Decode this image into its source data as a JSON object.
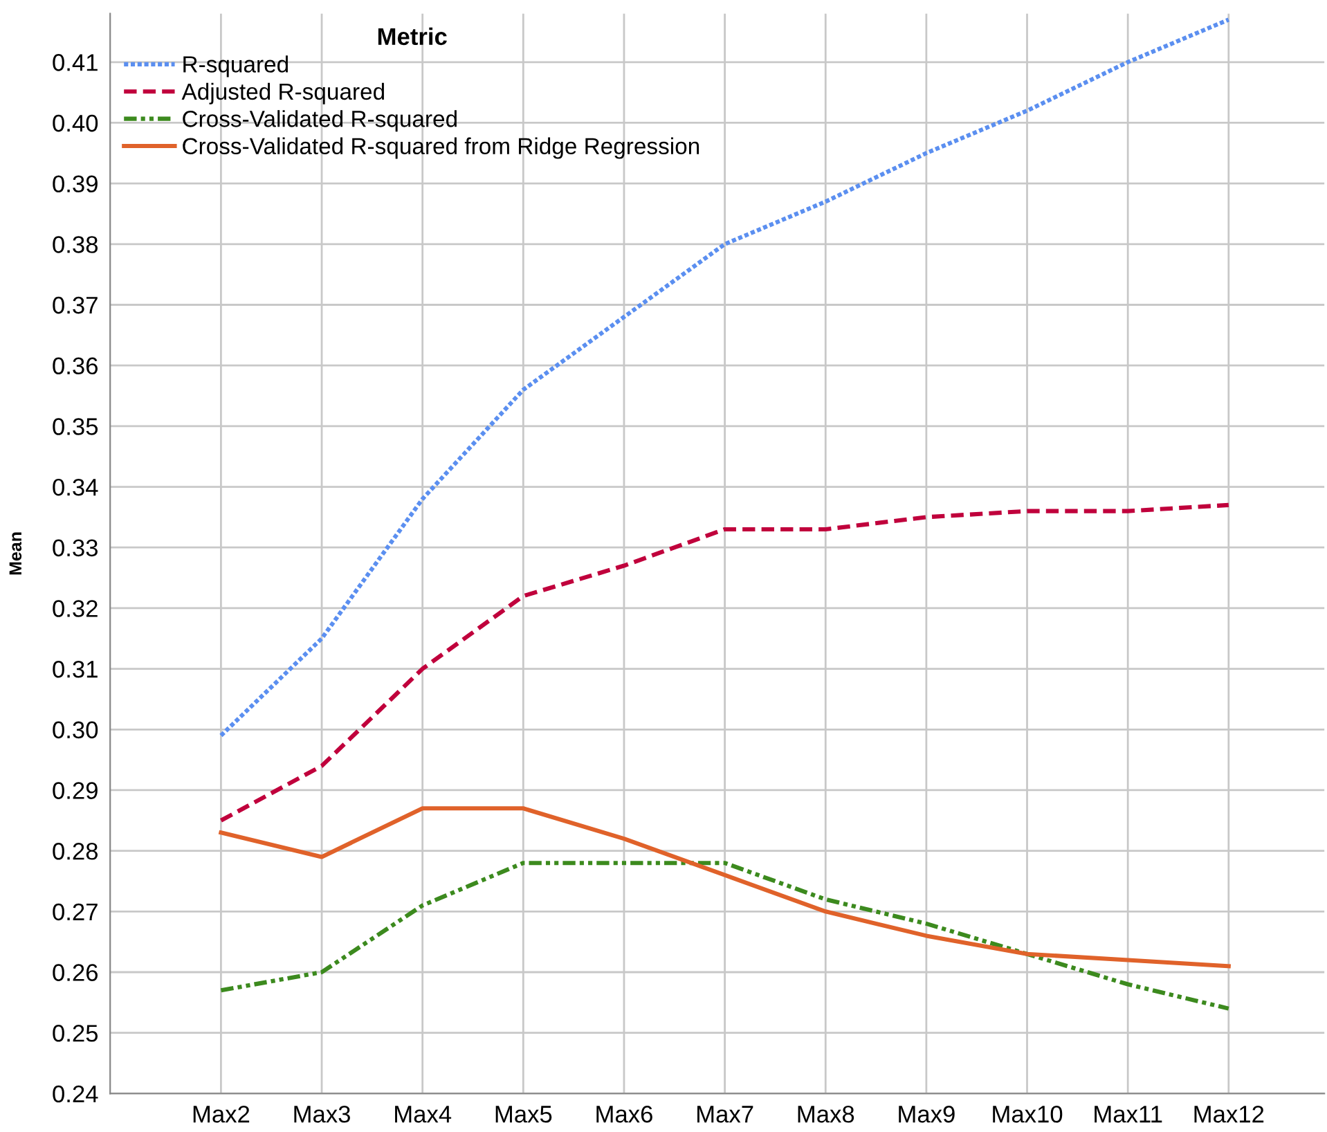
{
  "chart_data": {
    "type": "line",
    "ylabel": "Mean",
    "legend_title": "Metric",
    "categories": [
      "Max2",
      "Max3",
      "Max4",
      "Max5",
      "Max6",
      "Max7",
      "Max8",
      "Max9",
      "Max10",
      "Max11",
      "Max12"
    ],
    "series": [
      {
        "name": "R-squared",
        "color": "#5b8ff0",
        "line_style": "dotted",
        "values": [
          0.299,
          0.315,
          0.338,
          0.356,
          0.368,
          0.38,
          0.387,
          0.395,
          0.402,
          0.41,
          0.417
        ]
      },
      {
        "name": "Adjusted R-squared",
        "color": "#c0003c",
        "line_style": "dashed",
        "values": [
          0.285,
          0.294,
          0.31,
          0.322,
          0.327,
          0.333,
          0.333,
          0.335,
          0.336,
          0.336,
          0.337
        ]
      },
      {
        "name": "Cross-Validated R-squared",
        "color": "#3c8a1e",
        "line_style": "dashdot",
        "values": [
          0.257,
          0.26,
          0.271,
          0.278,
          0.278,
          0.278,
          0.272,
          0.268,
          0.263,
          0.258,
          0.254
        ]
      },
      {
        "name": "Cross-Validated R-squared from Ridge Regression",
        "color": "#e0622a",
        "line_style": "solid",
        "values": [
          0.283,
          0.279,
          0.287,
          0.287,
          0.282,
          0.276,
          0.27,
          0.266,
          0.263,
          0.262,
          0.261
        ]
      }
    ],
    "ylim": [
      0.24,
      0.418
    ],
    "yticks": [
      {
        "value": 0.24,
        "label": "0.24"
      },
      {
        "value": 0.25,
        "label": "0.25"
      },
      {
        "value": 0.26,
        "label": "0.26"
      },
      {
        "value": 0.27,
        "label": "0.27"
      },
      {
        "value": 0.28,
        "label": "0.28"
      },
      {
        "value": 0.29,
        "label": "0.29"
      },
      {
        "value": 0.3,
        "label": "0.30"
      },
      {
        "value": 0.31,
        "label": "0.31"
      },
      {
        "value": 0.32,
        "label": "0.32"
      },
      {
        "value": 0.33,
        "label": "0.33"
      },
      {
        "value": 0.34,
        "label": "0.34"
      },
      {
        "value": 0.35,
        "label": "0.35"
      },
      {
        "value": 0.36,
        "label": "0.36"
      },
      {
        "value": 0.37,
        "label": "0.37"
      },
      {
        "value": 0.38,
        "label": "0.38"
      },
      {
        "value": 0.39,
        "label": "0.39"
      },
      {
        "value": 0.4,
        "label": "0.40"
      },
      {
        "value": 0.41,
        "label": "0.41"
      }
    ],
    "grid": true,
    "legend": "top left",
    "marker": "none"
  }
}
